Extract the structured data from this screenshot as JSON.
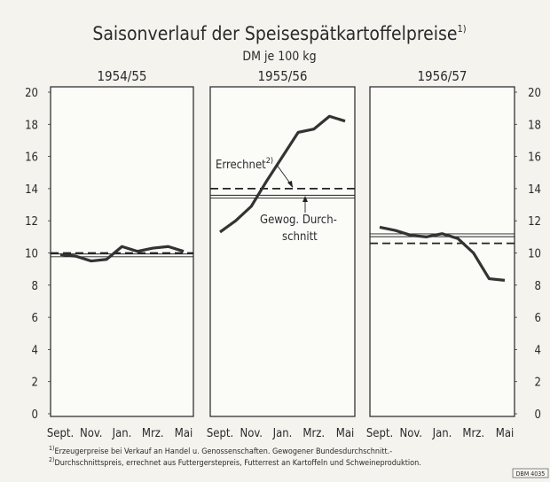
{
  "title": "Saisonverlauf der Speisespätkartoffelpreise",
  "title_note": "1)",
  "subtitle": "DM je 100 kg",
  "footnotes": [
    {
      "mark": "1)",
      "text": "Erzeugerpreise bei Verkauf an Handel u. Genossenschaften. Gewogener Bundesdurchschnitt.-"
    },
    {
      "mark": "2)",
      "text": "Durchschnittspreis, errechnet aus Futtergerstepreis, Futterrest an Kartoffeln und Schweineproduktion."
    }
  ],
  "code": "DBM 4035",
  "chart_data": [
    {
      "type": "line",
      "title": "1954/55",
      "categories": [
        "Sept.",
        null,
        "Nov.",
        null,
        "Jan.",
        null,
        "Mrz.",
        null,
        "Mai"
      ],
      "ylim": [
        0,
        20
      ],
      "yticks": [
        0,
        2,
        4,
        6,
        8,
        10,
        12,
        14,
        16,
        18,
        20
      ],
      "y_axis_side": "left",
      "series": [
        {
          "color": "#333333",
          "values": [
            9.9,
            9.8,
            9.5,
            9.6,
            10.4,
            10.1,
            10.3,
            10.4,
            10.1
          ]
        }
      ],
      "reference_lines": [
        {
          "value": 10.0,
          "style": "dashed"
        },
        {
          "value": 9.85,
          "style": "double"
        }
      ]
    },
    {
      "type": "line",
      "title": "1955/56",
      "categories": [
        "Sept.",
        null,
        "Nov.",
        null,
        "Jan.",
        null,
        "Mrz.",
        null,
        "Mai"
      ],
      "ylim": [
        0,
        20
      ],
      "series": [
        {
          "color": "#333333",
          "values": [
            11.3,
            12.0,
            12.9,
            14.5,
            16.0,
            17.5,
            17.7,
            18.5,
            18.2
          ]
        }
      ],
      "reference_lines": [
        {
          "value": 14.0,
          "style": "dashed"
        },
        {
          "value": 13.5,
          "style": "double"
        }
      ],
      "annotations": [
        {
          "text": "Errechnet",
          "note": "2)"
        },
        {
          "text": "Gewog. Durch-"
        },
        {
          "text": "schnitt"
        }
      ]
    },
    {
      "type": "line",
      "title": "1956/57",
      "categories": [
        "Sept.",
        null,
        "Nov.",
        null,
        "Jan.",
        null,
        "Mrz.",
        null,
        "Mai"
      ],
      "ylim": [
        0,
        20
      ],
      "yticks": [
        0,
        2,
        4,
        6,
        8,
        10,
        12,
        14,
        16,
        18,
        20
      ],
      "y_axis_side": "right",
      "series": [
        {
          "color": "#333333",
          "values": [
            11.6,
            11.4,
            11.1,
            11.0,
            11.2,
            10.9,
            10.0,
            8.4,
            8.3
          ]
        }
      ],
      "reference_lines": [
        {
          "value": 10.6,
          "style": "dashed"
        },
        {
          "value": 11.1,
          "style": "double"
        }
      ]
    }
  ]
}
